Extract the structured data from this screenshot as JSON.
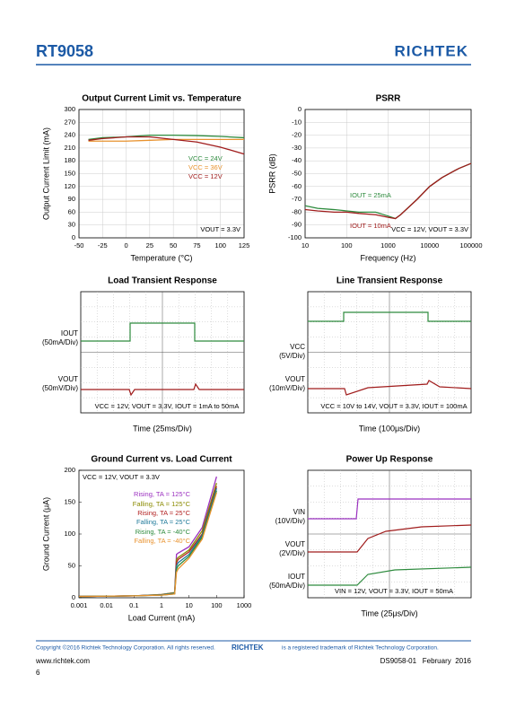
{
  "header": {
    "title": "RT9058",
    "logo": "RICHTEK"
  },
  "chart_data": [
    {
      "type": "line",
      "title": "Output Current Limit vs. Temperature",
      "xlabel": "Temperature (°C)",
      "ylabel": "Output Current Limit (mA)",
      "x": [
        -40,
        -25,
        0,
        25,
        50,
        75,
        100,
        125
      ],
      "series": [
        {
          "name": "VCC = 24V",
          "color": "#2e8b3e",
          "values": [
            230,
            234,
            236,
            240,
            240,
            239,
            237,
            234
          ]
        },
        {
          "name": "VCC = 36V",
          "color": "#e8922e",
          "values": [
            226,
            226,
            226,
            228,
            230,
            230,
            230,
            230
          ]
        },
        {
          "name": "VCC = 12V",
          "color": "#a01c1c",
          "values": [
            228,
            232,
            236,
            236,
            230,
            224,
            212,
            196
          ]
        }
      ],
      "annotations": [
        "VOUT = 3.3V"
      ],
      "xlim": [
        -50,
        125
      ],
      "xticks": [
        -50,
        -25,
        0,
        25,
        50,
        75,
        100,
        125
      ],
      "ylim": [
        0,
        300
      ],
      "yticks": [
        0,
        30,
        60,
        90,
        120,
        150,
        180,
        210,
        240,
        270,
        300
      ],
      "grid": true
    },
    {
      "type": "line",
      "title": "PSRR",
      "xlabel": "Frequency (Hz)",
      "ylabel": "PSRR (dB)",
      "xscale": "log",
      "x": [
        10,
        20,
        50,
        100,
        200,
        500,
        1000,
        1500,
        2000,
        5000,
        10000,
        20000,
        50000,
        100000
      ],
      "series": [
        {
          "name": "IOUT = 25mA",
          "color": "#2e8b3e",
          "values": [
            -75,
            -77,
            -78,
            -79,
            -80,
            -80,
            -83,
            -85,
            -82,
            -70,
            -60,
            -53,
            -46,
            -42
          ]
        },
        {
          "name": "IOUT = 10mA",
          "color": "#a01c1c",
          "values": [
            -78,
            -79,
            -80,
            -80,
            -81,
            -82,
            -84,
            -85,
            -82,
            -70,
            -60,
            -53,
            -46,
            -42
          ]
        }
      ],
      "annotations": [
        "VCC = 12V, VOUT = 3.3V"
      ],
      "xlim": [
        10,
        100000
      ],
      "xticks": [
        10,
        100,
        1000,
        10000,
        100000
      ],
      "ylim": [
        -100,
        0
      ],
      "yticks": [
        0,
        -10,
        -20,
        -30,
        -40,
        -50,
        -60,
        -70,
        -80,
        -90,
        -100
      ],
      "grid": true
    },
    {
      "type": "oscilloscope",
      "title": "Load Transient Response",
      "xlabel": "Time (25ms/Div)",
      "channels": [
        {
          "name": "IOUT",
          "scale": "(50mA/Div)"
        },
        {
          "name": "VOUT",
          "scale": "(50mV/Div)"
        }
      ],
      "annotations": [
        "VCC = 12V, VOUT = 3.3V, IOUT = 1mA to 50mA"
      ]
    },
    {
      "type": "oscilloscope",
      "title": "Line Transient Response",
      "xlabel": "Time (100μs/Div)",
      "channels": [
        {
          "name": "VCC",
          "scale": "(5V/Div)"
        },
        {
          "name": "VOUT",
          "scale": "(10mV/Div)"
        }
      ],
      "annotations": [
        "VCC = 10V to 14V, VOUT = 3.3V, IOUT = 100mA"
      ]
    },
    {
      "type": "line",
      "title": "Ground Current vs. Load Current",
      "xlabel": "Load Current (mA)",
      "ylabel": "Ground Current (μA)",
      "xscale": "log",
      "x": [
        0.001,
        0.01,
        0.1,
        1,
        3,
        3.5,
        4,
        10,
        30,
        100
      ],
      "series": [
        {
          "name": "Rising, TA = 125°C",
          "color": "#9b30c0",
          "values": [
            2,
            2.5,
            3,
            5,
            8,
            68,
            70,
            80,
            110,
            190
          ]
        },
        {
          "name": "Falling, TA = 125°C",
          "color": "#8a8a00",
          "values": [
            2,
            2.5,
            3,
            5,
            8,
            60,
            63,
            75,
            105,
            180
          ]
        },
        {
          "name": "Rising, TA = 25°C",
          "color": "#b22222",
          "values": [
            2,
            2.5,
            3,
            4.5,
            7,
            55,
            60,
            72,
            100,
            175
          ]
        },
        {
          "name": "Falling, TA = 25°C",
          "color": "#1f7a9a",
          "values": [
            2,
            2.5,
            3,
            4.5,
            7,
            50,
            55,
            68,
            98,
            172
          ]
        },
        {
          "name": "Rising, TA = -40°C",
          "color": "#2e8b3e",
          "values": [
            2,
            2.5,
            3,
            4,
            6,
            45,
            50,
            65,
            95,
            168
          ]
        },
        {
          "name": "Falling, TA = -40°C",
          "color": "#e8922e",
          "values": [
            2,
            2.5,
            3,
            4,
            6,
            40,
            45,
            62,
            92,
            165
          ]
        }
      ],
      "annotations": [
        "VCC = 12V, VOUT = 3.3V"
      ],
      "xlim": [
        0.001,
        1000
      ],
      "xticks": [
        0.001,
        0.01,
        0.1,
        1,
        10,
        100,
        1000
      ],
      "ylim": [
        0,
        200
      ],
      "yticks": [
        0,
        50,
        100,
        150,
        200
      ],
      "grid": false
    },
    {
      "type": "oscilloscope",
      "title": "Power Up Response",
      "xlabel": "Time (25μs/Div)",
      "channels": [
        {
          "name": "VIN",
          "scale": "(10V/Div)"
        },
        {
          "name": "VOUT",
          "scale": "(2V/Div)"
        },
        {
          "name": "IOUT",
          "scale": "(50mA/Div)"
        }
      ],
      "annotations": [
        "VIN = 12V, VOUT = 3.3V, IOUT = 50mA"
      ]
    }
  ],
  "footer": {
    "copyright": "Copyright ©2016 Richtek Technology Corporation. All rights reserved.",
    "logo": "RICHTEK",
    "trademark": "is a registered trademark of Richtek Technology Corporation.",
    "website": "www.richtek.com",
    "doc": "DS9058-01   February  2016",
    "page": "6"
  }
}
